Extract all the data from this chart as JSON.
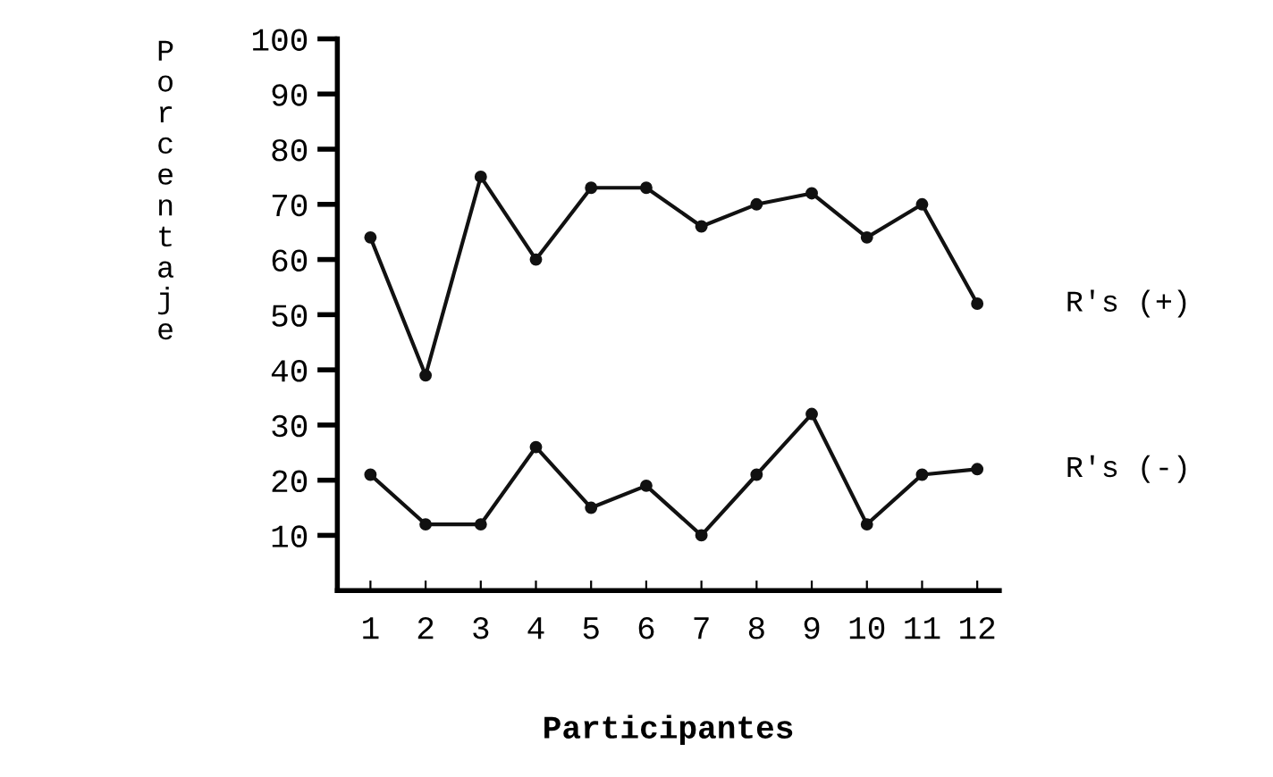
{
  "chart_data": {
    "type": "line",
    "xlabel": "Participantes",
    "ylabel": "Porcentaje",
    "categories": [
      "1",
      "2",
      "3",
      "4",
      "5",
      "6",
      "7",
      "8",
      "9",
      "10",
      "11",
      "12"
    ],
    "series": [
      {
        "name": "R's (+)",
        "color": "#111111",
        "values": [
          64,
          39,
          75,
          60,
          73,
          73,
          66,
          70,
          72,
          64,
          70,
          52
        ]
      },
      {
        "name": "R's (-)",
        "color": "#111111",
        "values": [
          21,
          12,
          12,
          26,
          15,
          19,
          10,
          21,
          32,
          12,
          21,
          22
        ]
      }
    ],
    "ylim": [
      0,
      100
    ],
    "yticks": [
      10,
      20,
      30,
      40,
      50,
      60,
      70,
      80,
      90,
      100
    ],
    "marker": "circle",
    "line_style": "solid",
    "grid": false,
    "legend": false
  }
}
